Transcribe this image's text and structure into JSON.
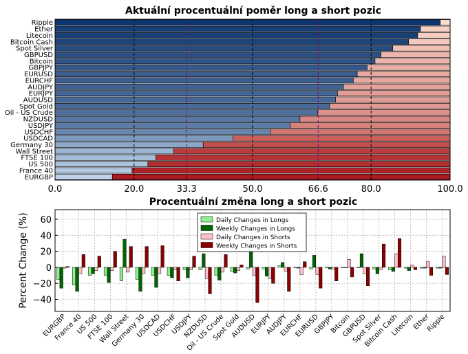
{
  "chart_data": [
    {
      "type": "bar",
      "orientation": "horizontal-stacked",
      "title": "Aktuální procentuální poměr long a short pozic",
      "categories": [
        "Ripple",
        "Ether",
        "Litecoin",
        "Bitcoin Cash",
        "Spot Silver",
        "GBPUSD",
        "Bitcoin",
        "GBPJPY",
        "EURUSD",
        "EURCHF",
        "AUDJPY",
        "EURJPY",
        "AUDUSD",
        "Spot Gold",
        "Oil - US Crude",
        "NZDUSD",
        "USDJPY",
        "USDCHF",
        "USDCAD",
        "Germany 30",
        "Wall Street",
        "FTSE 100",
        "US 500",
        "France 40",
        "EURGBP"
      ],
      "long_values": [
        97.5,
        92.5,
        91.8,
        89.5,
        85.5,
        82.5,
        81.0,
        79.0,
        76.5,
        75.5,
        73.0,
        71.5,
        71.0,
        69.5,
        66.5,
        62.0,
        59.5,
        54.5,
        45.0,
        37.5,
        30.0,
        25.5,
        23.5,
        19.5,
        14.5
      ],
      "xlim": [
        0,
        100
      ],
      "xticks": [
        "0.0",
        "20.0",
        "33.3",
        "50.0",
        "66.6",
        "80.0",
        "100.0"
      ],
      "xtick_values": [
        0,
        20,
        33.3,
        50,
        66.6,
        80,
        100
      ],
      "highlight_ticks": [
        "33.3",
        "66.6"
      ],
      "colors": {
        "highlight": "#800080"
      }
    },
    {
      "type": "bar",
      "orientation": "vertical-grouped",
      "title": "Procentuální změna long a short pozic",
      "ylabel": "Percent Change (%)",
      "ylim": [
        -55,
        72
      ],
      "yticks": [
        "60",
        "40",
        "20",
        "0",
        "−20",
        "−40"
      ],
      "ytick_values": [
        60,
        40,
        20,
        0,
        -20,
        -40
      ],
      "categories": [
        "EURGBP",
        "France 40",
        "US 500",
        "FTSE 100",
        "Wall Street",
        "Germany 30",
        "USDCAD",
        "USDCHF",
        "USDJPY",
        "NZDUSD",
        "Oil - US Crude",
        "Spot Gold",
        "AUDUSD",
        "EURJPY",
        "AUDJPY",
        "EURCHF",
        "EURUSD",
        "GBPJPY",
        "Bitcoin",
        "GBPUSD",
        "Spot Silver",
        "Bitcoin Cash",
        "Litecoin",
        "Ether",
        "Ripple"
      ],
      "series": [
        {
          "name": "Daily Changes in Longs",
          "color": "#90ee90",
          "values": [
            -15,
            -22,
            -10,
            -10,
            -17,
            -15,
            -10,
            -10,
            -3,
            -3,
            -10,
            -5,
            -2,
            -2,
            2,
            0,
            -2,
            0,
            0,
            0,
            -2,
            -3,
            -1,
            -1,
            -1
          ]
        },
        {
          "name": "Weekly Changes in Longs",
          "color": "#006400",
          "values": [
            -26,
            -30,
            -8,
            -19,
            35,
            -30,
            -25,
            -13,
            -13,
            17,
            -16,
            -7,
            22,
            -11,
            6,
            -1,
            15,
            -2,
            0,
            17,
            -8,
            -5,
            -4,
            -1,
            -1
          ]
        },
        {
          "name": "Daily Changes in Shorts",
          "color": "#ffc0cb",
          "values": [
            -1,
            -8,
            -4,
            -4,
            -6,
            -8,
            -8,
            -3,
            -3,
            -14,
            -6,
            -4,
            -10,
            -14,
            -5,
            -9,
            -9,
            -2,
            10,
            -8,
            -3,
            17,
            3,
            7,
            14
          ]
        },
        {
          "name": "Weekly Changes in Shorts",
          "color": "#8b0000",
          "values": [
            1,
            16,
            14,
            20,
            26,
            26,
            27,
            -17,
            14,
            -33,
            16,
            3,
            -44,
            -20,
            -30,
            7,
            -26,
            -17,
            -12,
            -23,
            29,
            36,
            -3,
            -10,
            -9
          ]
        }
      ]
    }
  ]
}
